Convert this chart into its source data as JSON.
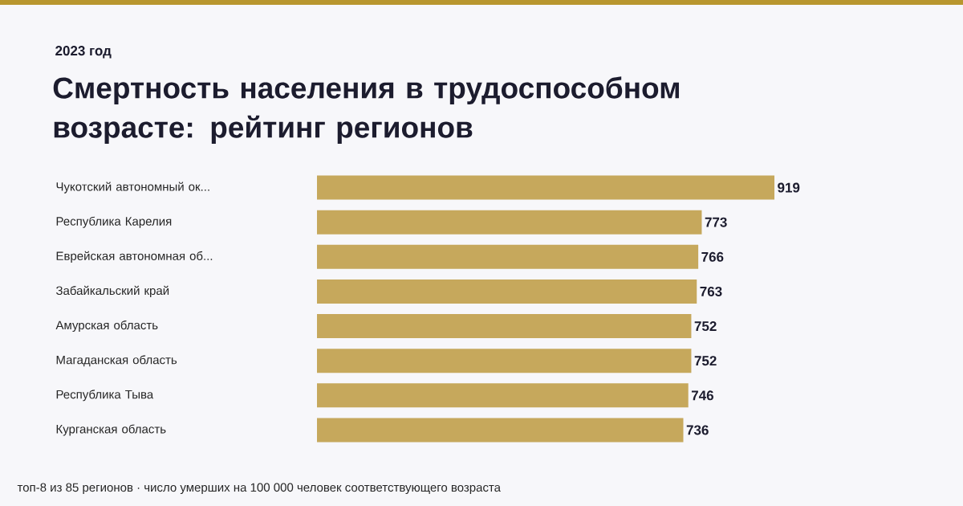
{
  "chart_data": {
    "type": "bar",
    "orientation": "horizontal",
    "title": "Смертность населения в трудоспособном возрасте: рейтинг регионов",
    "subtitle": "2023 год",
    "categories": [
      "Чукотский автономный ок...",
      "Республика Карелия",
      "Еврейская автономная об...",
      "Забайкальский край",
      "Амурская область",
      "Магаданская область",
      "Республика Тыва",
      "Курганская область"
    ],
    "values": [
      919,
      773,
      766,
      763,
      752,
      752,
      746,
      736
    ],
    "color": "#c6a85c",
    "data_labels": true,
    "tick_labels": "y",
    "annotations": [
      "топ-8 из 85 регионов · число умерших на 100 000 человек соответствующего возраста"
    ]
  }
}
